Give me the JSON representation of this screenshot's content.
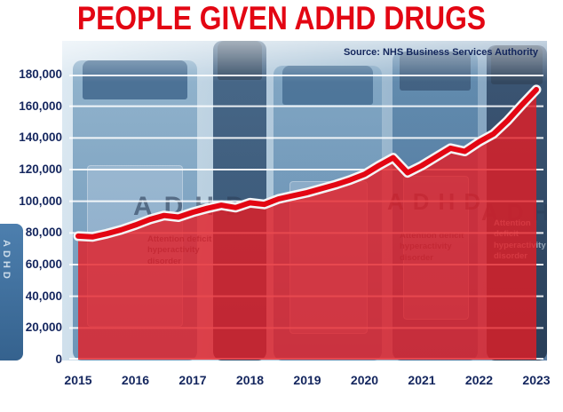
{
  "page": {
    "title": "PEOPLE GIVEN ADHD DRUGS",
    "source": "Source: NHS Business Services Authority"
  },
  "colors": {
    "title_red": "#e30613",
    "line_red": "#e30613",
    "line_casing": "#f3f5f7",
    "area_red": "rgba(229,29,36,0.8)",
    "axis_navy": "#14265e",
    "gridline": "rgba(255,255,255,0.88)"
  },
  "background": {
    "adhd_label": "ADHD",
    "bottle_caption": "Attention deficit hyperactivity disorder"
  },
  "chart_data": {
    "type": "area",
    "title": "PEOPLE GIVEN ADHD DRUGS",
    "source": "Source: NHS Business Services Authority",
    "years": [
      2015,
      2016,
      2017,
      2018,
      2019,
      2020,
      2021,
      2022,
      2023
    ],
    "points_per_year": 4,
    "x_note": "quarterly values from 2015 to 2023",
    "values": [
      78000,
      77500,
      79500,
      82000,
      85000,
      88500,
      91000,
      90000,
      93000,
      95500,
      97500,
      96000,
      99000,
      98000,
      101500,
      103500,
      105500,
      108000,
      110500,
      113500,
      117000,
      122500,
      127500,
      118000,
      122500,
      128000,
      133500,
      131500,
      137500,
      142500,
      151000,
      161000,
      170500
    ],
    "ylim": [
      0,
      180000
    ],
    "ytick_step": 20000,
    "ytick_labels": [
      "0",
      "20,000",
      "40,000",
      "60,000",
      "80,000",
      "100,000",
      "120,000",
      "140,000",
      "160,000",
      "180,000"
    ],
    "grid": true,
    "legend": false
  }
}
